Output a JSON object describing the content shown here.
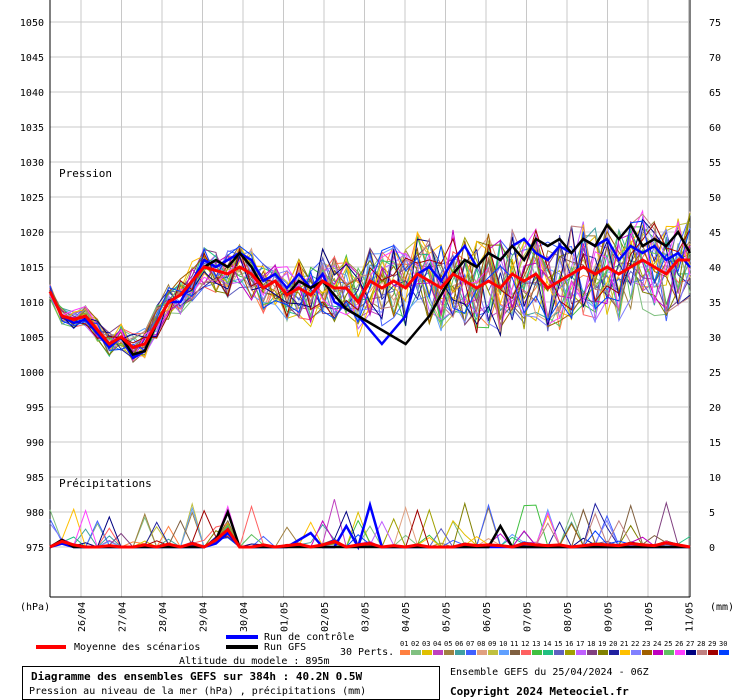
{
  "chart_data": {
    "type": "line",
    "left_axis": {
      "unit_label": "(hPa)",
      "range": [
        970,
        1050
      ],
      "ticks": [
        975,
        980,
        985,
        990,
        995,
        1000,
        1005,
        1010,
        1015,
        1020,
        1025,
        1030,
        1035,
        1040,
        1045,
        1050
      ]
    },
    "right_axis": {
      "unit_label": "(mm)",
      "range": [
        -5,
        75
      ],
      "ticks": [
        0,
        5,
        10,
        15,
        20,
        25,
        30,
        35,
        40,
        45,
        50,
        55,
        60,
        65,
        70,
        75
      ]
    },
    "x_categories": [
      "26/04",
      "27/04",
      "28/04",
      "29/04",
      "30/04",
      "01/05",
      "02/05",
      "03/05",
      "04/05",
      "05/05",
      "06/05",
      "07/05",
      "08/05",
      "09/05",
      "10/05",
      "11/05"
    ],
    "panel_labels": {
      "pressure": "Pression",
      "precip": "Précipitations"
    },
    "grid": true,
    "pressure_series": [
      {
        "name": "Moyenne des scénarios",
        "color": "#ff0000",
        "values": [
          1011.5,
          1008,
          1007.5,
          1008,
          1006,
          1004,
          1005,
          1003.5,
          1004,
          1007,
          1010,
          1011,
          1013,
          1015,
          1014.5,
          1014,
          1015,
          1014,
          1012,
          1013,
          1011,
          1012,
          1011,
          1013,
          1012,
          1012,
          1010,
          1013,
          1012,
          1013,
          1012,
          1014,
          1013,
          1012,
          1014,
          1013,
          1012,
          1013,
          1012,
          1014,
          1013,
          1014,
          1012,
          1013,
          1014,
          1015,
          1014,
          1015,
          1014,
          1015,
          1016,
          1015,
          1014,
          1016,
          1016
        ]
      },
      {
        "name": "Run de contrôle",
        "color": "#0000ff",
        "values": [
          1011.5,
          1008,
          1007,
          1007.5,
          1005.5,
          1003.5,
          1005,
          1002,
          1003,
          1007,
          1010,
          1010,
          1013,
          1016,
          1015,
          1016,
          1017,
          1016,
          1013,
          1014,
          1012,
          1014,
          1012,
          1014,
          1010,
          1009,
          1008,
          1006,
          1004,
          1006,
          1008,
          1014,
          1015,
          1013,
          1016,
          1018,
          1015,
          1017,
          1016,
          1018,
          1019,
          1017,
          1016,
          1018,
          1017,
          1019,
          1018,
          1019,
          1016,
          1018,
          1017,
          1018,
          1016,
          1017,
          1015
        ]
      },
      {
        "name": "Run GFS",
        "color": "#000000",
        "values": [
          1011.5,
          1008,
          1007.5,
          1008,
          1006,
          1004,
          1005,
          1002.5,
          1003,
          1007,
          1010,
          1011,
          1013,
          1015,
          1016,
          1015,
          1017,
          1015,
          1012,
          1013,
          1011,
          1013,
          1012,
          1013,
          1011,
          1009,
          1008,
          1007,
          1006,
          1005,
          1004,
          1006,
          1008,
          1011,
          1014,
          1016,
          1015,
          1017,
          1016,
          1018,
          1016,
          1019,
          1018,
          1019,
          1017,
          1019,
          1018,
          1021,
          1019,
          1021,
          1018,
          1019,
          1018,
          1020,
          1017
        ]
      }
    ],
    "precip_series": [
      {
        "name": "Moyenne des scénarios",
        "color": "#ff0000",
        "values": [
          0,
          0.8,
          0.3,
          0,
          0,
          0.2,
          0,
          0,
          0.3,
          0,
          0.4,
          0,
          0.5,
          0,
          1,
          2.5,
          0,
          0,
          0.3,
          0,
          0.2,
          0.4,
          0,
          0.3,
          0.8,
          0,
          0.3,
          0.5,
          0,
          0.2,
          0,
          0.3,
          0,
          0,
          0,
          0.4,
          0.2,
          0.3,
          0.2,
          0,
          0.5,
          0.3,
          0.2,
          0.3,
          0,
          0.2,
          0.4,
          0.3,
          0.2,
          0.5,
          0.3,
          0.2,
          0.6,
          0.3,
          0
        ]
      },
      {
        "name": "Run de contrôle",
        "color": "#0000ff",
        "values": [
          0,
          0.5,
          0,
          0,
          0,
          0,
          0,
          0,
          0,
          0,
          0,
          0,
          0,
          0,
          0.5,
          2,
          0,
          0,
          0,
          0,
          0,
          1,
          2,
          0,
          0,
          3,
          0,
          6,
          0,
          0,
          0,
          0,
          0,
          0,
          0,
          0,
          0,
          0,
          0,
          0,
          0,
          0,
          0,
          0,
          0,
          0,
          0,
          0,
          0,
          0,
          0,
          0,
          0,
          0,
          0
        ]
      },
      {
        "name": "Run GFS",
        "color": "#000000",
        "values": [
          0,
          1,
          0,
          0,
          0,
          0,
          0,
          0,
          0,
          0,
          0,
          0,
          0,
          0,
          1,
          5,
          0,
          0,
          0,
          0,
          0,
          0,
          0,
          0,
          0,
          0,
          0,
          0,
          0,
          0,
          0,
          0,
          0,
          0,
          0,
          0,
          0,
          0,
          3,
          0,
          0,
          0,
          0,
          0,
          0,
          0,
          0,
          0,
          0,
          0,
          0,
          0,
          0,
          0,
          0
        ]
      }
    ],
    "legend": {
      "mean": "Moyenne des scénarios",
      "control": "Run de contrôle",
      "gfs": "Run GFS",
      "perts_label": "30 Perts.",
      "perts_ids": [
        "01",
        "02",
        "03",
        "04",
        "05",
        "06",
        "07",
        "08",
        "09",
        "10",
        "11",
        "12",
        "13",
        "14",
        "15",
        "16",
        "17",
        "18",
        "19",
        "20",
        "21",
        "22",
        "23",
        "24",
        "25",
        "26",
        "27",
        "28",
        "29",
        "30"
      ],
      "perts_colors": [
        "#ff8040",
        "#80c080",
        "#e0c000",
        "#c040c0",
        "#a08040",
        "#40a0a0",
        "#4060ff",
        "#e0a080",
        "#c0c040",
        "#60a0ff",
        "#806040",
        "#ff6060",
        "#40c040",
        "#20c080",
        "#6060c0",
        "#a0a000",
        "#c060ff",
        "#804080",
        "#808000",
        "#2020a0",
        "#ffc000",
        "#8080ff",
        "#a06000",
        "#c000c0",
        "#60c060",
        "#ff40ff",
        "#000080",
        "#c08080",
        "#a00000",
        "#0040ff"
      ]
    },
    "altitude_label": "Altitude du modele : 895m",
    "ensemble_label": "Ensemble GEFS du 25/04/2024 - 06Z",
    "copyright": "Copyright 2024 Meteociel.fr",
    "title": "Diagramme des ensembles GEFS sur 384h : 40.2N 0.5W",
    "subtitle": "Pression au niveau de la mer (hPa) , précipitations (mm)"
  }
}
